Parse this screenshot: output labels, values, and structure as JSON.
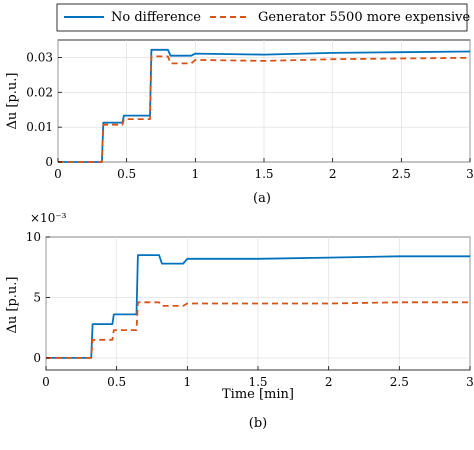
{
  "legend": {
    "entries": [
      {
        "label": "No difference",
        "color": "#0072BD",
        "style": "solid"
      },
      {
        "label": "Generator 5500 more expensive",
        "color": "#D95319",
        "style": "dashed"
      }
    ]
  },
  "chart_data": [
    {
      "type": "line",
      "caption": "(a)",
      "xlabel": "",
      "ylabel": "Δu [p.u.]",
      "xlim": [
        0,
        3
      ],
      "ylim": [
        0,
        0.035
      ],
      "xticks": [
        0,
        0.5,
        1,
        1.5,
        2,
        2.5,
        3
      ],
      "xtick_labels": [
        "0",
        "0.5",
        "1",
        "1.5",
        "2",
        "2.5",
        "3"
      ],
      "yticks": [
        0,
        0.01,
        0.02,
        0.03
      ],
      "ytick_labels": [
        "0",
        "0.01",
        "0.02",
        "0.03"
      ],
      "exponent_label": "",
      "series": [
        {
          "name": "No difference",
          "color": "#0072BD",
          "dashed": false,
          "x": [
            0,
            0.32,
            0.33,
            0.47,
            0.48,
            0.67,
            0.68,
            0.8,
            0.82,
            0.97,
            1.0,
            1.5,
            2.0,
            2.5,
            3.0
          ],
          "y": [
            0,
            0,
            0.0113,
            0.0113,
            0.0133,
            0.0133,
            0.0322,
            0.0322,
            0.0305,
            0.0305,
            0.0311,
            0.0308,
            0.0313,
            0.0315,
            0.0317
          ]
        },
        {
          "name": "Generator 5500 more expensive",
          "color": "#D95319",
          "dashed": true,
          "x": [
            0,
            0.32,
            0.33,
            0.47,
            0.48,
            0.67,
            0.68,
            0.8,
            0.82,
            0.97,
            1.0,
            1.5,
            2.0,
            2.5,
            3.0
          ],
          "y": [
            0,
            0,
            0.0107,
            0.0107,
            0.0123,
            0.0123,
            0.0303,
            0.0303,
            0.0283,
            0.0283,
            0.0293,
            0.029,
            0.0295,
            0.0297,
            0.0299
          ]
        }
      ]
    },
    {
      "type": "line",
      "caption": "(b)",
      "xlabel": "Time [min]",
      "ylabel": "Δu [p.u.]",
      "xlim": [
        0,
        3
      ],
      "ylim": [
        -0.001,
        0.01
      ],
      "xticks": [
        0,
        0.5,
        1,
        1.5,
        2,
        2.5,
        3
      ],
      "xtick_labels": [
        "0",
        "0.5",
        "1",
        "1.5",
        "2",
        "2.5",
        "3"
      ],
      "yticks": [
        0,
        0.005,
        0.01
      ],
      "ytick_labels": [
        "0",
        "5",
        "10"
      ],
      "exponent_label": "×10⁻³",
      "series": [
        {
          "name": "No difference",
          "color": "#0072BD",
          "dashed": false,
          "x": [
            0,
            0.32,
            0.33,
            0.47,
            0.48,
            0.64,
            0.65,
            0.8,
            0.82,
            0.97,
            1.0,
            1.5,
            2.0,
            2.5,
            3.0
          ],
          "y": [
            0,
            0,
            0.0028,
            0.0028,
            0.0036,
            0.0036,
            0.0085,
            0.0085,
            0.0078,
            0.0078,
            0.0082,
            0.0082,
            0.0083,
            0.0084,
            0.0084
          ]
        },
        {
          "name": "Generator 5500 more expensive",
          "color": "#D95319",
          "dashed": true,
          "x": [
            0,
            0.32,
            0.33,
            0.47,
            0.48,
            0.64,
            0.65,
            0.8,
            0.82,
            0.97,
            1.0,
            1.5,
            2.0,
            2.5,
            3.0
          ],
          "y": [
            0,
            0,
            0.0015,
            0.0015,
            0.0023,
            0.0023,
            0.0046,
            0.0046,
            0.0043,
            0.0043,
            0.0045,
            0.0045,
            0.0045,
            0.0046,
            0.0046
          ]
        }
      ]
    }
  ]
}
